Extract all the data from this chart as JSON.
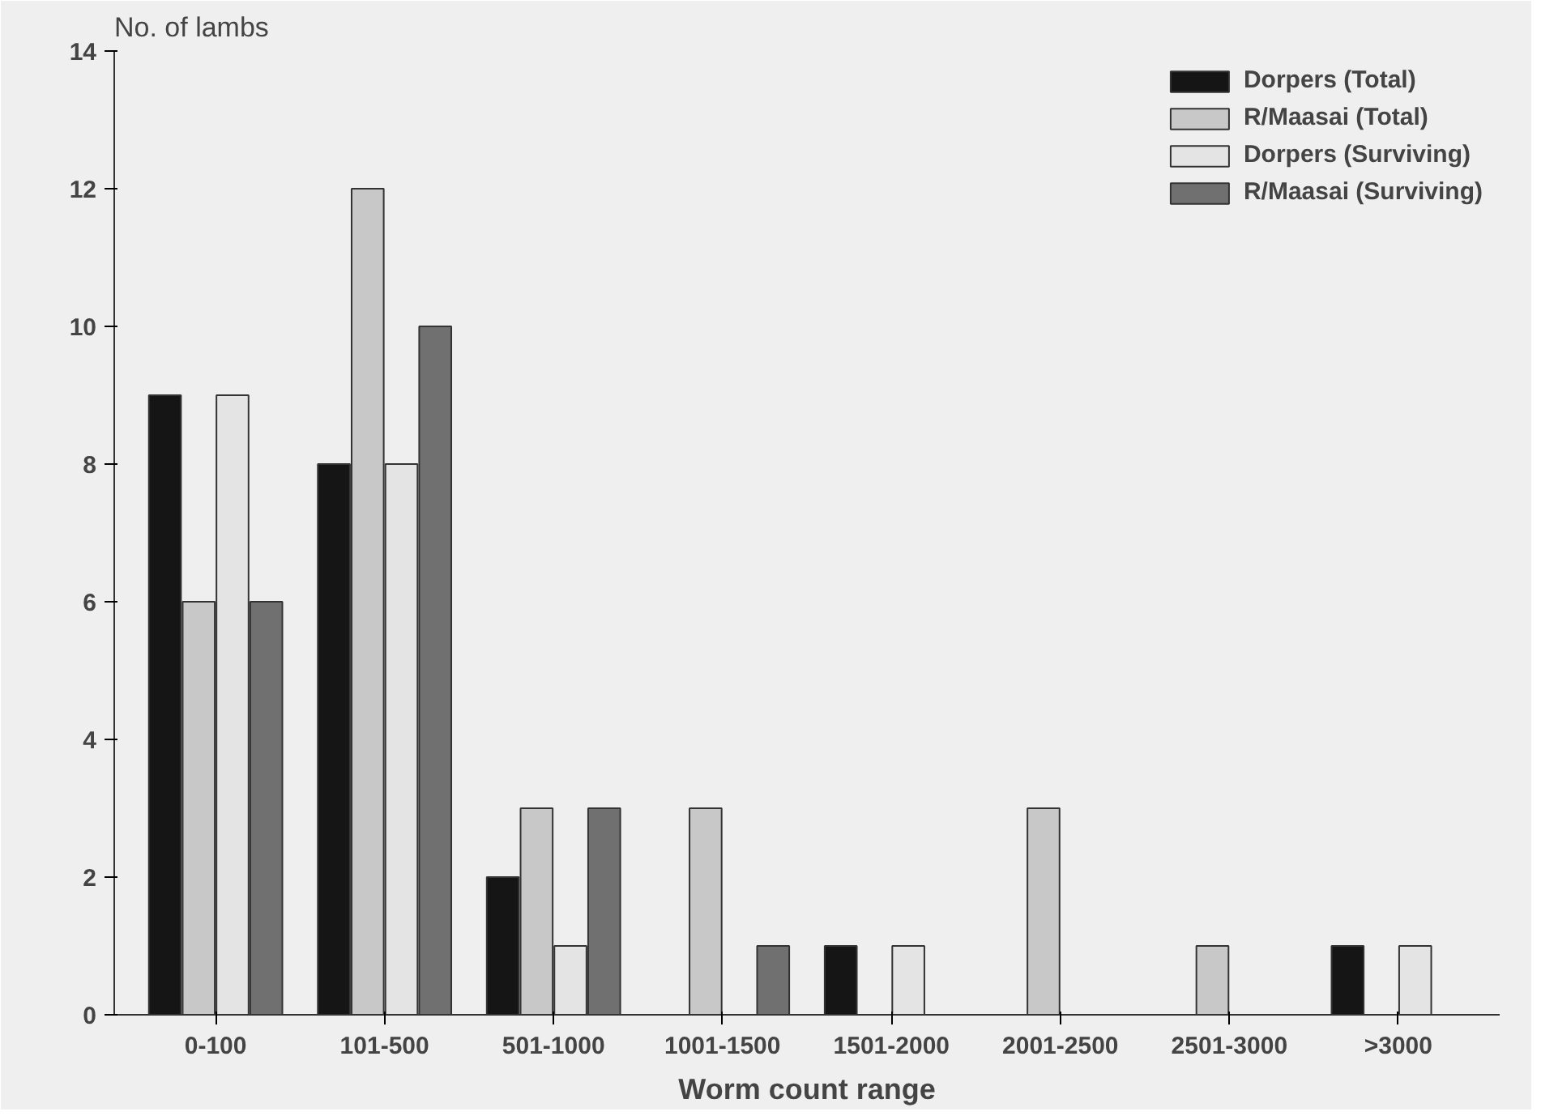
{
  "chart_data": {
    "type": "bar",
    "xlabel": "Worm count range",
    "ylabel": "No. of lambs",
    "categories": [
      "0-100",
      "101-500",
      "501-1000",
      "1001-1500",
      "1501-2000",
      "2001-2500",
      "2501-3000",
      ">3000"
    ],
    "series": [
      {
        "name": "Dorpers (Total)",
        "color": "#151515",
        "values": [
          9,
          8,
          2,
          0,
          1,
          0,
          0,
          1
        ]
      },
      {
        "name": "R/Maasai (Total)",
        "color": "#c8c8c8",
        "values": [
          6,
          12,
          3,
          3,
          0,
          3,
          1,
          0
        ]
      },
      {
        "name": "Dorpers (Surviving)",
        "color": "#e4e4e4",
        "values": [
          9,
          8,
          1,
          0,
          1,
          0,
          0,
          1
        ]
      },
      {
        "name": "R/Maasai (Surviving)",
        "color": "#707070",
        "values": [
          6,
          10,
          3,
          1,
          0,
          0,
          0,
          0
        ]
      }
    ],
    "ylim": [
      0,
      14
    ],
    "yticks": [
      0,
      2,
      4,
      6,
      8,
      10,
      12,
      14
    ],
    "grid": false,
    "legend": "top right"
  }
}
